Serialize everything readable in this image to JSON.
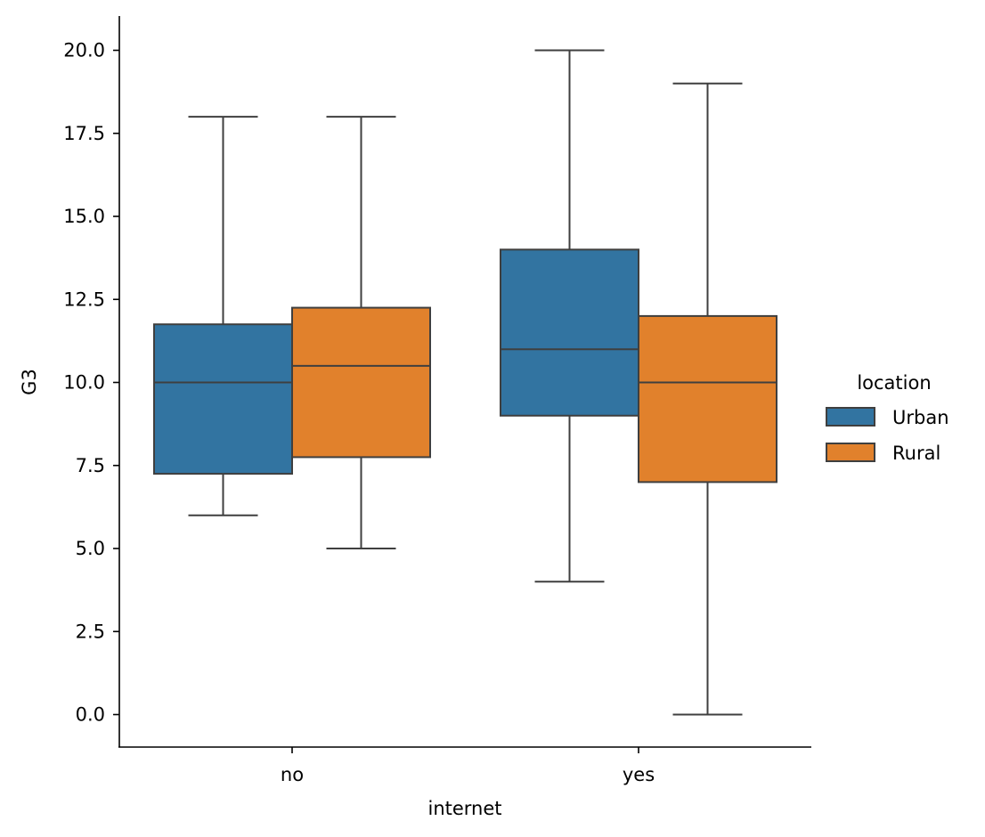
{
  "chart_data": {
    "type": "boxplot",
    "xlabel": "internet",
    "ylabel": "G3",
    "ylim": [
      -1.0,
      21.0
    ],
    "yticks": [
      0.0,
      2.5,
      5.0,
      7.5,
      10.0,
      12.5,
      15.0,
      17.5,
      20.0
    ],
    "ytick_labels": [
      "0.0",
      "2.5",
      "5.0",
      "7.5",
      "10.0",
      "12.5",
      "15.0",
      "17.5",
      "20.0"
    ],
    "categories": [
      "no",
      "yes"
    ],
    "grid": false,
    "legend": {
      "title": "location",
      "placement": "right",
      "entries": [
        "Urban",
        "Rural"
      ]
    },
    "series": [
      {
        "name": "Urban",
        "color": "#3274a1",
        "boxes": [
          {
            "category": "no",
            "whisker_low": 6.0,
            "q1": 7.25,
            "median": 10.0,
            "q3": 11.75,
            "whisker_high": 18.0
          },
          {
            "category": "yes",
            "whisker_low": 4.0,
            "q1": 9.0,
            "median": 11.0,
            "q3": 14.0,
            "whisker_high": 20.0
          }
        ]
      },
      {
        "name": "Rural",
        "color": "#e1812c",
        "boxes": [
          {
            "category": "no",
            "whisker_low": 5.0,
            "q1": 7.75,
            "median": 10.5,
            "q3": 12.25,
            "whisker_high": 18.0
          },
          {
            "category": "yes",
            "whisker_low": 0.0,
            "q1": 7.0,
            "median": 10.0,
            "q3": 12.0,
            "whisker_high": 19.0
          }
        ]
      }
    ]
  }
}
